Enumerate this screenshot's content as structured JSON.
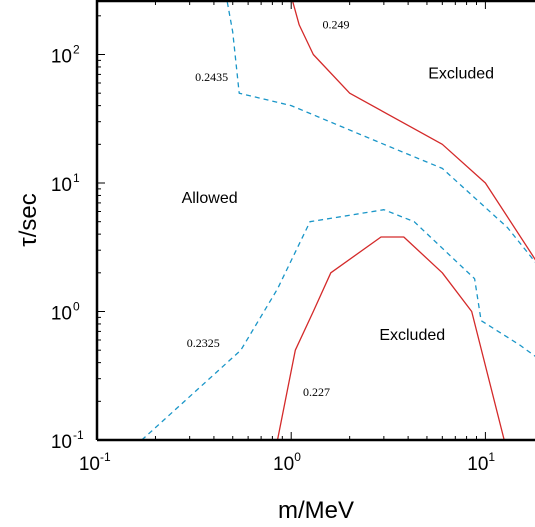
{
  "chart_data": {
    "type": "line",
    "title": "",
    "xlabel": "m/MeV",
    "ylabel": "τ/sec",
    "xscale": "log",
    "yscale": "log",
    "xlim": [
      0.1,
      20
    ],
    "ylim": [
      0.1,
      300
    ],
    "grid": false,
    "x_ticks": [
      {
        "base": "10",
        "exp": "-1",
        "value": 0.1
      },
      {
        "base": "10",
        "exp": "0",
        "value": 1
      },
      {
        "base": "10",
        "exp": "1",
        "value": 10
      }
    ],
    "y_ticks": [
      {
        "base": "10",
        "exp": "-1",
        "value": 0.1
      },
      {
        "base": "10",
        "exp": "0",
        "value": 1
      },
      {
        "base": "10",
        "exp": "1",
        "value": 10
      },
      {
        "base": "10",
        "exp": "2",
        "value": 100
      }
    ],
    "colors": {
      "solid": "#d42a2a",
      "dashed": "#1a96c8",
      "axis": "#000000"
    },
    "series": [
      {
        "label": "0.249",
        "style": "solid",
        "color": "#d42a2a",
        "points": [
          [
            0.99,
            300
          ],
          [
            1.1,
            170
          ],
          [
            1.3,
            100
          ],
          [
            2.0,
            50
          ],
          [
            6.0,
            20
          ],
          [
            10.0,
            10
          ],
          [
            20.0,
            2.0
          ]
        ]
      },
      {
        "label": "0.2435",
        "style": "dashed",
        "color": "#1a96c8",
        "points": [
          [
            0.46,
            300
          ],
          [
            0.5,
            150
          ],
          [
            0.54,
            50
          ],
          [
            1.0,
            40
          ],
          [
            3.0,
            20
          ],
          [
            6.0,
            13
          ],
          [
            13.0,
            4.5
          ],
          [
            20.0,
            2.0
          ]
        ]
      },
      {
        "label": "0.2325",
        "style": "dashed",
        "color": "#1a96c8",
        "points": [
          [
            0.17,
            0.1
          ],
          [
            0.55,
            0.5
          ],
          [
            0.85,
            1.5
          ],
          [
            1.25,
            5.0
          ],
          [
            3.0,
            6.2
          ],
          [
            4.3,
            5.0
          ],
          [
            8.8,
            1.8
          ],
          [
            9.5,
            0.85
          ],
          [
            15.0,
            0.55
          ],
          [
            20.0,
            0.4
          ]
        ]
      },
      {
        "label": "0.227",
        "style": "solid",
        "color": "#d42a2a",
        "points": [
          [
            0.85,
            0.1
          ],
          [
            1.05,
            0.5
          ],
          [
            1.3,
            1.0
          ],
          [
            1.6,
            2.0
          ],
          [
            2.9,
            3.8
          ],
          [
            3.8,
            3.8
          ],
          [
            6.0,
            2.0
          ],
          [
            8.5,
            1.0
          ],
          [
            12.5,
            0.1
          ]
        ]
      }
    ],
    "contour_labels": [
      {
        "text": "0.249",
        "x": 1.45,
        "y": 160
      },
      {
        "text": "0.2435",
        "x": 0.32,
        "y": 62
      },
      {
        "text": "0.2325",
        "x": 0.29,
        "y": 0.53
      },
      {
        "text": "0.227",
        "x": 1.15,
        "y": 0.22
      }
    ],
    "region_labels": [
      {
        "text": "Excluded",
        "x": 7.5,
        "y": 65
      },
      {
        "text": "Allowed",
        "x": 0.38,
        "y": 7
      },
      {
        "text": "Excluded",
        "x": 4.2,
        "y": 0.6
      }
    ]
  }
}
